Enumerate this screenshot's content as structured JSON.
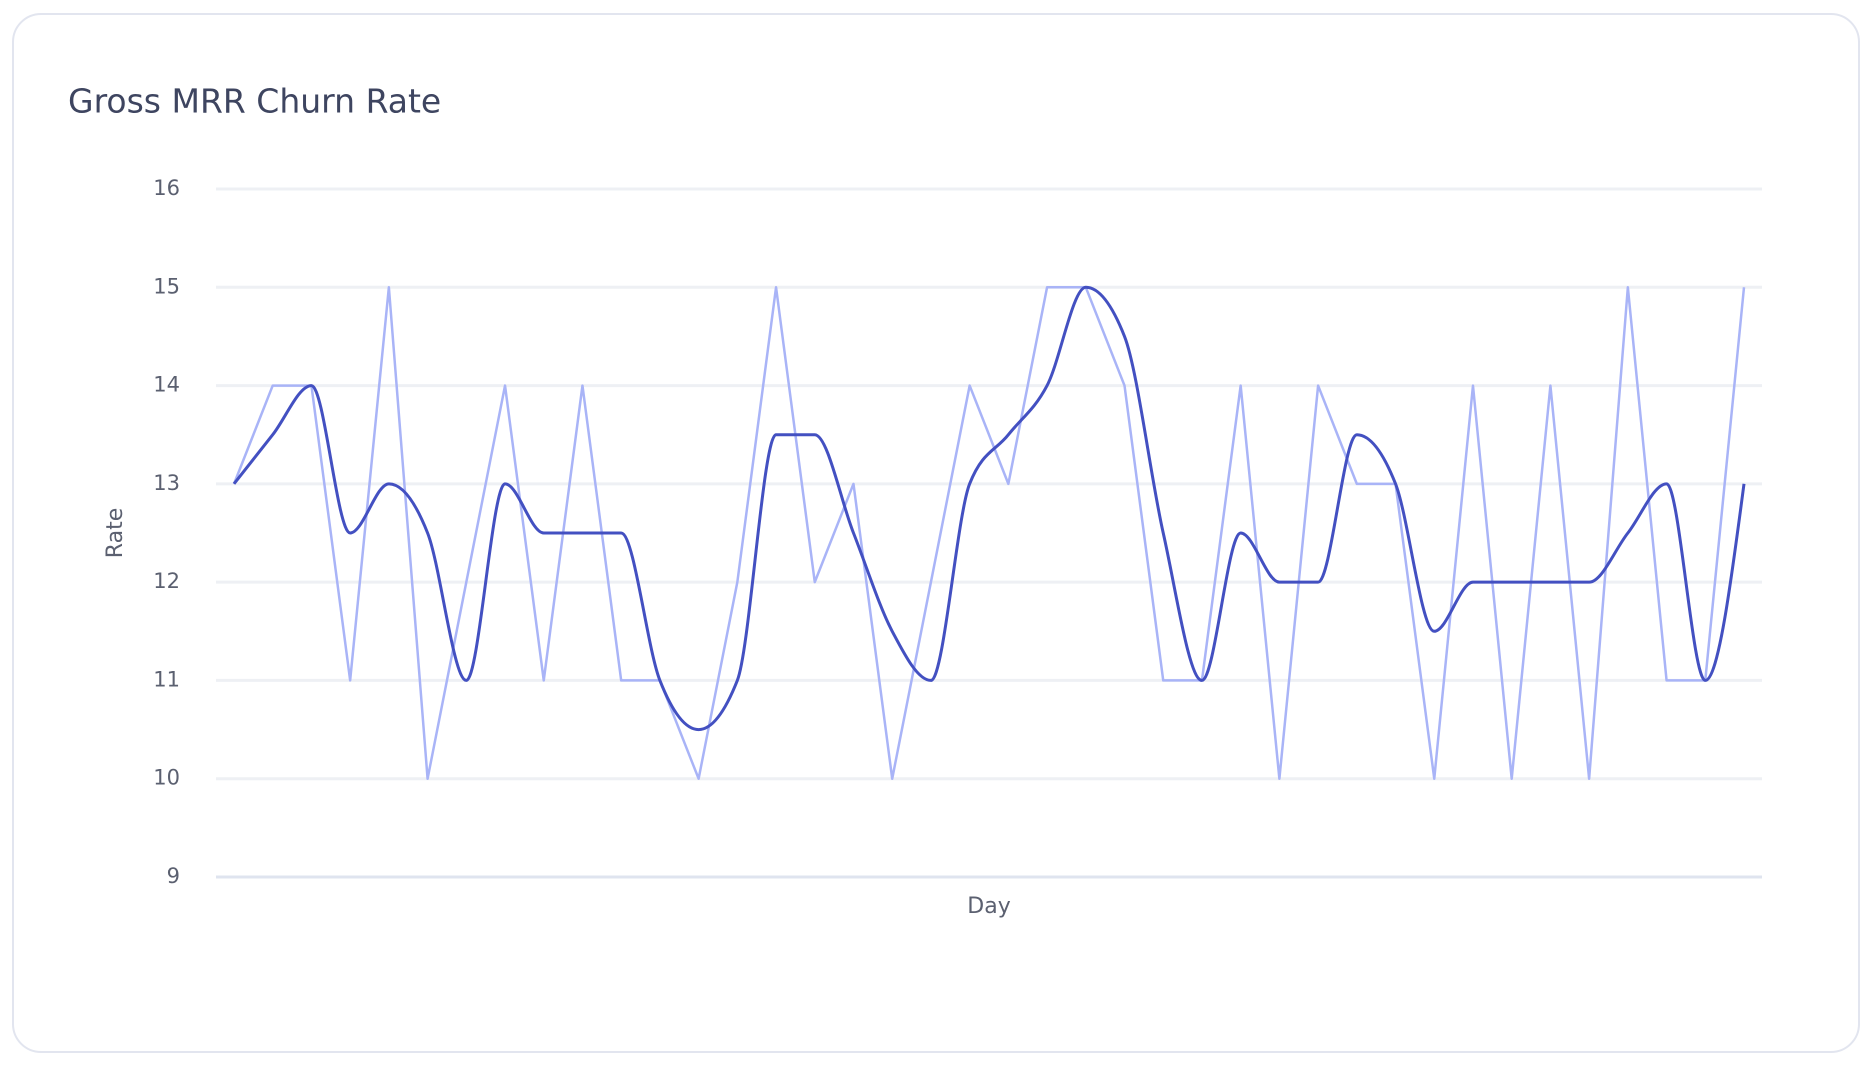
{
  "chart_data": {
    "type": "line",
    "title": "Gross MRR Churn Rate",
    "x_label": "Day",
    "y_label": "Rate",
    "categories": [
      null,
      null,
      null,
      null,
      null,
      null,
      null,
      null,
      null,
      null,
      null,
      null,
      null,
      null,
      null,
      null,
      null,
      null,
      null,
      null,
      null,
      null,
      null,
      null,
      null,
      null,
      null,
      null,
      null,
      null,
      null,
      null,
      null,
      null,
      null,
      null,
      null,
      null,
      null,
      null
    ],
    "series": [
      {
        "color": "#a9b4f7",
        "smooth": false,
        "values": [
          13,
          14,
          14,
          11,
          15,
          10,
          12,
          14,
          11,
          14,
          11,
          11,
          10,
          12,
          15,
          12,
          13,
          10,
          12,
          14,
          13,
          15,
          15,
          14,
          11,
          11,
          14,
          10,
          14,
          13,
          13,
          10,
          14,
          10,
          14,
          10,
          15,
          11,
          11,
          15
        ]
      },
      {
        "color": "#4350c1",
        "smooth": true,
        "values": [
          13,
          13.5,
          14,
          12.5,
          13,
          12.5,
          11,
          13,
          12.5,
          12.5,
          12.5,
          11,
          10.5,
          11,
          13.5,
          13.5,
          12.5,
          11.5,
          11,
          13,
          13.5,
          14,
          15,
          14.5,
          12.5,
          11,
          12.5,
          12,
          12,
          13.5,
          13,
          11.5,
          12,
          12,
          12,
          12,
          12.5,
          13,
          11,
          13
        ]
      }
    ],
    "ylim": [
      9,
      16
    ],
    "yticks": [
      9,
      10,
      11,
      12,
      13,
      14,
      15,
      16
    ],
    "grid": true
  }
}
